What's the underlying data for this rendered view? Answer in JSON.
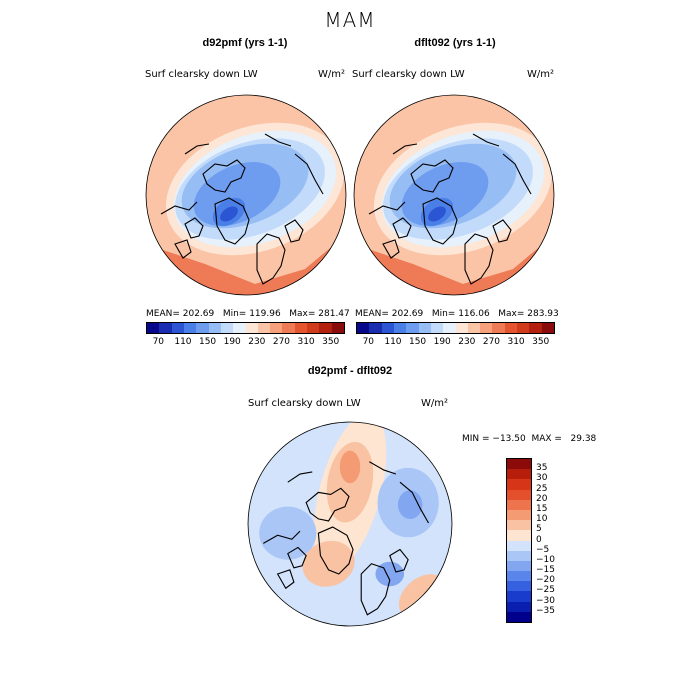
{
  "title": "MAM",
  "panels": [
    {
      "id": "d92pmf",
      "title": "d92pmf (yrs 1-1)",
      "variable": "Surf clearsky down LW",
      "units": "W/m²",
      "stats": "MEAN= 202.69   Min= 119.96   Max= 281.47",
      "mean": 202.69,
      "min": 119.96,
      "max": 281.47
    },
    {
      "id": "dflt092",
      "title": "dflt092 (yrs 1-1)",
      "variable": "Surf clearsky down LW",
      "units": "W/m²",
      "stats": "MEAN= 202.69   Min= 116.06   Max= 283.93",
      "mean": 202.69,
      "min": 116.06,
      "max": 283.93
    },
    {
      "id": "diff",
      "title": "d92pmf - dflt092",
      "variable": "Surf clearsky down LW",
      "units": "W/m²",
      "stats": "MIN = −13.50  MAX =   29.38",
      "min": -13.5,
      "max": 29.38
    }
  ],
  "abs_colorbar": {
    "colors": [
      "#08088a",
      "#1a2db0",
      "#2c55d4",
      "#4a7fe8",
      "#6e9df0",
      "#97bdf5",
      "#c3dbfa",
      "#e6f1fb",
      "#fde6d6",
      "#fbc4a6",
      "#f6a07c",
      "#ee7a56",
      "#e4552f",
      "#d13a1a",
      "#b22010",
      "#8a0d0d"
    ],
    "tick_labels": [
      "70",
      "110",
      "150",
      "190",
      "230",
      "270",
      "310",
      "350"
    ]
  },
  "diff_colorbar": {
    "colors": [
      "#00008c",
      "#0a1fb0",
      "#1a3ccc",
      "#3560e0",
      "#5a85ea",
      "#82a6f0",
      "#a9c6f6",
      "#d2e3fb",
      "#fde5d2",
      "#f9c2a3",
      "#f49b73",
      "#ee744d",
      "#e5502c",
      "#d63517",
      "#b61d0b",
      "#8c0a0a"
    ],
    "tick_labels": [
      "35",
      "30",
      "25",
      "20",
      "15",
      "10",
      "5",
      "0",
      "−5",
      "−10",
      "−15",
      "−20",
      "−25",
      "−30",
      "−35"
    ]
  }
}
